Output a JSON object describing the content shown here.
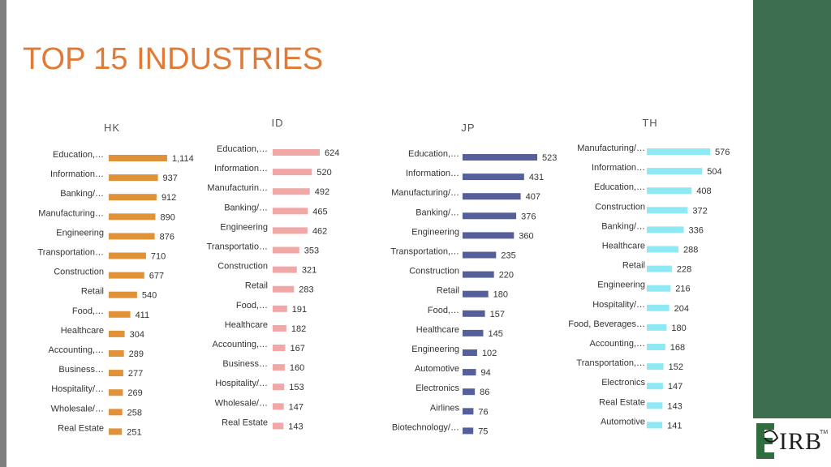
{
  "title": "TOP 15 INDUSTRIES",
  "logo": {
    "text": "IRB",
    "tm": "TM"
  },
  "colors": {
    "title": "#e07a36",
    "panel_bg": "#3d6e4e"
  },
  "chart_data": [
    {
      "type": "bar",
      "orientation": "horizontal",
      "title": "HK",
      "color": "#e0923a",
      "categories": [
        "Education,…",
        "Information…",
        "Banking/…",
        "Manufacturing…",
        "Engineering",
        "Transportation…",
        "Construction",
        "Retail",
        "Food,…",
        "Healthcare",
        "Accounting,…",
        "Business…",
        "Hospitality/…",
        "Wholesale/…",
        "Real Estate"
      ],
      "values": [
        1114,
        937,
        912,
        890,
        876,
        710,
        677,
        540,
        411,
        304,
        289,
        277,
        269,
        258,
        251
      ],
      "value_labels": [
        "1,114",
        "937",
        "912",
        "890",
        "876",
        "710",
        "677",
        "540",
        "411",
        "304",
        "289",
        "277",
        "269",
        "258",
        "251"
      ]
    },
    {
      "type": "bar",
      "orientation": "horizontal",
      "title": "ID",
      "color": "#f2a7a7",
      "categories": [
        "Education,…",
        "Information…",
        "Manufacturin…",
        "Banking/…",
        "Engineering",
        "Transportatio…",
        "Construction",
        "Retail",
        "Food,…",
        "Healthcare",
        "Accounting,…",
        "Business…",
        "Hospitality/…",
        "Wholesale/…",
        "Real Estate"
      ],
      "values": [
        624,
        520,
        492,
        465,
        462,
        353,
        321,
        283,
        191,
        182,
        167,
        160,
        153,
        147,
        143
      ],
      "value_labels": [
        "624",
        "520",
        "492",
        "465",
        "462",
        "353",
        "321",
        "283",
        "191",
        "182",
        "167",
        "160",
        "153",
        "147",
        "143"
      ]
    },
    {
      "type": "bar",
      "orientation": "horizontal",
      "title": "JP",
      "color": "#55609a",
      "categories": [
        "Education,…",
        "Information…",
        "Manufacturing/…",
        "Banking/…",
        "Engineering",
        "Transportation,…",
        "Construction",
        "Retail",
        "Food,…",
        "Healthcare",
        "Engineering",
        "Automotive",
        "Electronics",
        "Airlines",
        "Biotechnology/…"
      ],
      "values": [
        523,
        431,
        407,
        376,
        360,
        235,
        220,
        180,
        157,
        145,
        102,
        94,
        86,
        76,
        75
      ],
      "value_labels": [
        "523",
        "431",
        "407",
        "376",
        "360",
        "235",
        "220",
        "180",
        "157",
        "145",
        "102",
        "94",
        "86",
        "76",
        "75"
      ]
    },
    {
      "type": "bar",
      "orientation": "horizontal",
      "title": "TH",
      "color": "#8ee9f5",
      "categories": [
        "Manufacturing/…",
        "Information…",
        "Education,…",
        "Construction",
        "Banking/…",
        "Healthcare",
        "Retail",
        "Engineering",
        "Hospitality/…",
        "Food, Beverages…",
        "Accounting,…",
        "Transportation,…",
        "Electronics",
        "Real Estate",
        "Automotive"
      ],
      "values": [
        576,
        504,
        408,
        372,
        336,
        288,
        228,
        216,
        204,
        180,
        168,
        152,
        147,
        143,
        141
      ],
      "value_labels": [
        "576",
        "504",
        "408",
        "372",
        "336",
        "288",
        "228",
        "216",
        "204",
        "180",
        "168",
        "152",
        "147",
        "143",
        "141"
      ]
    }
  ]
}
